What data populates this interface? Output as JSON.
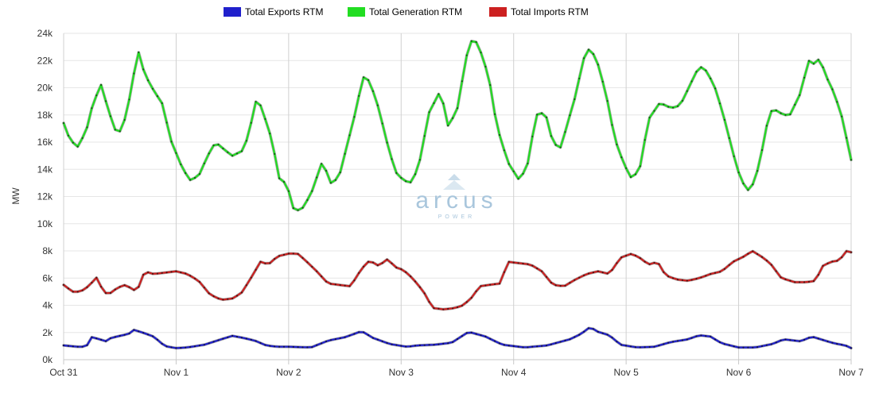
{
  "chart_data": {
    "type": "line",
    "title": "",
    "ylabel": "MW",
    "xlabel": "",
    "ylim": [
      0,
      24000
    ],
    "yticks": [
      0,
      2000,
      4000,
      6000,
      8000,
      10000,
      12000,
      14000,
      16000,
      18000,
      20000,
      22000,
      24000
    ],
    "ytick_labels": [
      "0k",
      "2k",
      "4k",
      "6k",
      "8k",
      "10k",
      "12k",
      "14k",
      "16k",
      "18k",
      "20k",
      "22k",
      "24k"
    ],
    "xlim": [
      "2023-10-31 00:00",
      "2023-11-07 00:00"
    ],
    "xtick_labels": [
      "Oct 31",
      "Nov 1",
      "Nov 2",
      "Nov 3",
      "Nov 4",
      "Nov 5",
      "Nov 6",
      "Nov 7"
    ],
    "xtick_days": [
      0,
      1,
      2,
      3,
      4,
      5,
      6,
      7
    ],
    "grid": true,
    "legend_position": "top-center",
    "watermark": {
      "brand": "arcus",
      "sub": "POWER",
      "color": "#a9c6dc"
    },
    "series": [
      {
        "name": "Total Exports RTM",
        "color": "#2020cc",
        "keypoints": [
          [
            0,
            1050
          ],
          [
            0.12,
            950
          ],
          [
            0.2,
            950
          ],
          [
            0.25,
            1650
          ],
          [
            0.3,
            1550
          ],
          [
            0.38,
            1350
          ],
          [
            0.42,
            1600
          ],
          [
            0.5,
            1750
          ],
          [
            0.58,
            1900
          ],
          [
            0.62,
            2200
          ],
          [
            0.7,
            2000
          ],
          [
            0.8,
            1700
          ],
          [
            0.9,
            1000
          ],
          [
            1.0,
            850
          ],
          [
            1.1,
            900
          ],
          [
            1.25,
            1100
          ],
          [
            1.4,
            1500
          ],
          [
            1.5,
            1750
          ],
          [
            1.6,
            1600
          ],
          [
            1.7,
            1400
          ],
          [
            1.8,
            1050
          ],
          [
            1.9,
            950
          ],
          [
            2.0,
            950
          ],
          [
            2.2,
            900
          ],
          [
            2.35,
            1400
          ],
          [
            2.5,
            1650
          ],
          [
            2.65,
            2100
          ],
          [
            2.75,
            1600
          ],
          [
            2.9,
            1150
          ],
          [
            3.05,
            950
          ],
          [
            3.15,
            1050
          ],
          [
            3.3,
            1100
          ],
          [
            3.45,
            1250
          ],
          [
            3.6,
            2050
          ],
          [
            3.75,
            1700
          ],
          [
            3.9,
            1100
          ],
          [
            4.1,
            900
          ],
          [
            4.3,
            1050
          ],
          [
            4.5,
            1500
          ],
          [
            4.6,
            1900
          ],
          [
            4.68,
            2400
          ],
          [
            4.75,
            2050
          ],
          [
            4.85,
            1800
          ],
          [
            4.95,
            1100
          ],
          [
            5.1,
            900
          ],
          [
            5.25,
            950
          ],
          [
            5.4,
            1300
          ],
          [
            5.55,
            1500
          ],
          [
            5.65,
            1800
          ],
          [
            5.75,
            1700
          ],
          [
            5.85,
            1200
          ],
          [
            6.0,
            900
          ],
          [
            6.15,
            900
          ],
          [
            6.3,
            1150
          ],
          [
            6.4,
            1500
          ],
          [
            6.55,
            1350
          ],
          [
            6.65,
            1700
          ],
          [
            6.75,
            1450
          ],
          [
            6.85,
            1200
          ],
          [
            6.95,
            1050
          ],
          [
            7.0,
            850
          ]
        ]
      },
      {
        "name": "Total Generation RTM",
        "color": "#22dd22",
        "keypoints": [
          [
            0,
            17400
          ],
          [
            0.05,
            16300
          ],
          [
            0.12,
            15600
          ],
          [
            0.2,
            16800
          ],
          [
            0.25,
            18500
          ],
          [
            0.33,
            20300
          ],
          [
            0.4,
            18300
          ],
          [
            0.48,
            16400
          ],
          [
            0.55,
            17800
          ],
          [
            0.6,
            19800
          ],
          [
            0.66,
            22800
          ],
          [
            0.72,
            21000
          ],
          [
            0.8,
            19800
          ],
          [
            0.88,
            18800
          ],
          [
            0.95,
            16200
          ],
          [
            1.05,
            14200
          ],
          [
            1.12,
            13200
          ],
          [
            1.2,
            13500
          ],
          [
            1.28,
            15000
          ],
          [
            1.35,
            16000
          ],
          [
            1.45,
            15300
          ],
          [
            1.5,
            15000
          ],
          [
            1.6,
            15400
          ],
          [
            1.65,
            16800
          ],
          [
            1.72,
            19400
          ],
          [
            1.78,
            18000
          ],
          [
            1.85,
            16200
          ],
          [
            1.92,
            13200
          ],
          [
            1.98,
            13000
          ],
          [
            2.05,
            10900
          ],
          [
            2.12,
            11100
          ],
          [
            2.2,
            12200
          ],
          [
            2.3,
            14600
          ],
          [
            2.38,
            12900
          ],
          [
            2.45,
            13500
          ],
          [
            2.52,
            15800
          ],
          [
            2.6,
            18400
          ],
          [
            2.66,
            20800
          ],
          [
            2.72,
            20500
          ],
          [
            2.8,
            18500
          ],
          [
            2.88,
            15800
          ],
          [
            2.95,
            13800
          ],
          [
            3.02,
            13200
          ],
          [
            3.08,
            13000
          ],
          [
            3.15,
            14000
          ],
          [
            3.25,
            18200
          ],
          [
            3.35,
            19800
          ],
          [
            3.42,
            17100
          ],
          [
            3.5,
            18500
          ],
          [
            3.58,
            22300
          ],
          [
            3.64,
            23800
          ],
          [
            3.7,
            22800
          ],
          [
            3.78,
            20800
          ],
          [
            3.85,
            17200
          ],
          [
            3.95,
            14500
          ],
          [
            4.05,
            13200
          ],
          [
            4.12,
            14200
          ],
          [
            4.2,
            18000
          ],
          [
            4.28,
            18200
          ],
          [
            4.35,
            15900
          ],
          [
            4.42,
            15600
          ],
          [
            4.48,
            17400
          ],
          [
            4.55,
            19400
          ],
          [
            4.62,
            22100
          ],
          [
            4.68,
            23000
          ],
          [
            4.75,
            21700
          ],
          [
            4.82,
            19600
          ],
          [
            4.9,
            16200
          ],
          [
            4.98,
            14400
          ],
          [
            5.05,
            13300
          ],
          [
            5.12,
            14000
          ],
          [
            5.2,
            17700
          ],
          [
            5.3,
            18900
          ],
          [
            5.4,
            18500
          ],
          [
            5.48,
            18700
          ],
          [
            5.55,
            19900
          ],
          [
            5.65,
            21600
          ],
          [
            5.72,
            21200
          ],
          [
            5.8,
            19800
          ],
          [
            5.88,
            17500
          ],
          [
            5.95,
            15200
          ],
          [
            6.02,
            13200
          ],
          [
            6.1,
            12300
          ],
          [
            6.18,
            14200
          ],
          [
            6.25,
            17200
          ],
          [
            6.3,
            18500
          ],
          [
            6.38,
            18100
          ],
          [
            6.45,
            17900
          ],
          [
            6.55,
            19600
          ],
          [
            6.62,
            22000
          ],
          [
            6.68,
            21700
          ],
          [
            6.72,
            22200
          ],
          [
            6.78,
            20800
          ],
          [
            6.85,
            19600
          ],
          [
            6.92,
            17800
          ],
          [
            7.0,
            14700
          ]
        ]
      },
      {
        "name": "Total Imports RTM",
        "color": "#cc2020",
        "keypoints": [
          [
            0,
            5500
          ],
          [
            0.08,
            5000
          ],
          [
            0.15,
            5000
          ],
          [
            0.22,
            5400
          ],
          [
            0.3,
            6100
          ],
          [
            0.35,
            5000
          ],
          [
            0.4,
            4800
          ],
          [
            0.48,
            5300
          ],
          [
            0.55,
            5500
          ],
          [
            0.65,
            5000
          ],
          [
            0.72,
            6500
          ],
          [
            0.8,
            6300
          ],
          [
            0.9,
            6400
          ],
          [
            1.0,
            6500
          ],
          [
            1.1,
            6300
          ],
          [
            1.2,
            5800
          ],
          [
            1.3,
            4800
          ],
          [
            1.4,
            4400
          ],
          [
            1.5,
            4500
          ],
          [
            1.58,
            4900
          ],
          [
            1.65,
            5800
          ],
          [
            1.75,
            7200
          ],
          [
            1.82,
            7000
          ],
          [
            1.9,
            7600
          ],
          [
            2.0,
            7800
          ],
          [
            2.08,
            7800
          ],
          [
            2.15,
            7300
          ],
          [
            2.25,
            6500
          ],
          [
            2.35,
            5600
          ],
          [
            2.45,
            5500
          ],
          [
            2.55,
            5400
          ],
          [
            2.65,
            6700
          ],
          [
            2.72,
            7300
          ],
          [
            2.8,
            6900
          ],
          [
            2.88,
            7400
          ],
          [
            2.95,
            6800
          ],
          [
            3.02,
            6600
          ],
          [
            3.1,
            6000
          ],
          [
            3.2,
            5000
          ],
          [
            3.28,
            3800
          ],
          [
            3.38,
            3700
          ],
          [
            3.48,
            3800
          ],
          [
            3.55,
            4000
          ],
          [
            3.62,
            4500
          ],
          [
            3.7,
            5400
          ],
          [
            3.78,
            5500
          ],
          [
            3.88,
            5600
          ],
          [
            3.95,
            7200
          ],
          [
            4.05,
            7100
          ],
          [
            4.15,
            7000
          ],
          [
            4.25,
            6500
          ],
          [
            4.35,
            5500
          ],
          [
            4.45,
            5400
          ],
          [
            4.55,
            5900
          ],
          [
            4.65,
            6300
          ],
          [
            4.75,
            6500
          ],
          [
            4.85,
            6300
          ],
          [
            4.95,
            7500
          ],
          [
            5.05,
            7800
          ],
          [
            5.12,
            7500
          ],
          [
            5.2,
            7000
          ],
          [
            5.28,
            7200
          ],
          [
            5.35,
            6200
          ],
          [
            5.45,
            5900
          ],
          [
            5.55,
            5800
          ],
          [
            5.65,
            6000
          ],
          [
            5.75,
            6300
          ],
          [
            5.85,
            6500
          ],
          [
            5.95,
            7200
          ],
          [
            6.05,
            7600
          ],
          [
            6.12,
            8000
          ],
          [
            6.2,
            7600
          ],
          [
            6.28,
            7100
          ],
          [
            6.38,
            6000
          ],
          [
            6.5,
            5700
          ],
          [
            6.6,
            5700
          ],
          [
            6.68,
            5800
          ],
          [
            6.75,
            6900
          ],
          [
            6.82,
            7200
          ],
          [
            6.9,
            7300
          ],
          [
            6.95,
            8000
          ],
          [
            7.0,
            7900
          ]
        ]
      }
    ]
  }
}
